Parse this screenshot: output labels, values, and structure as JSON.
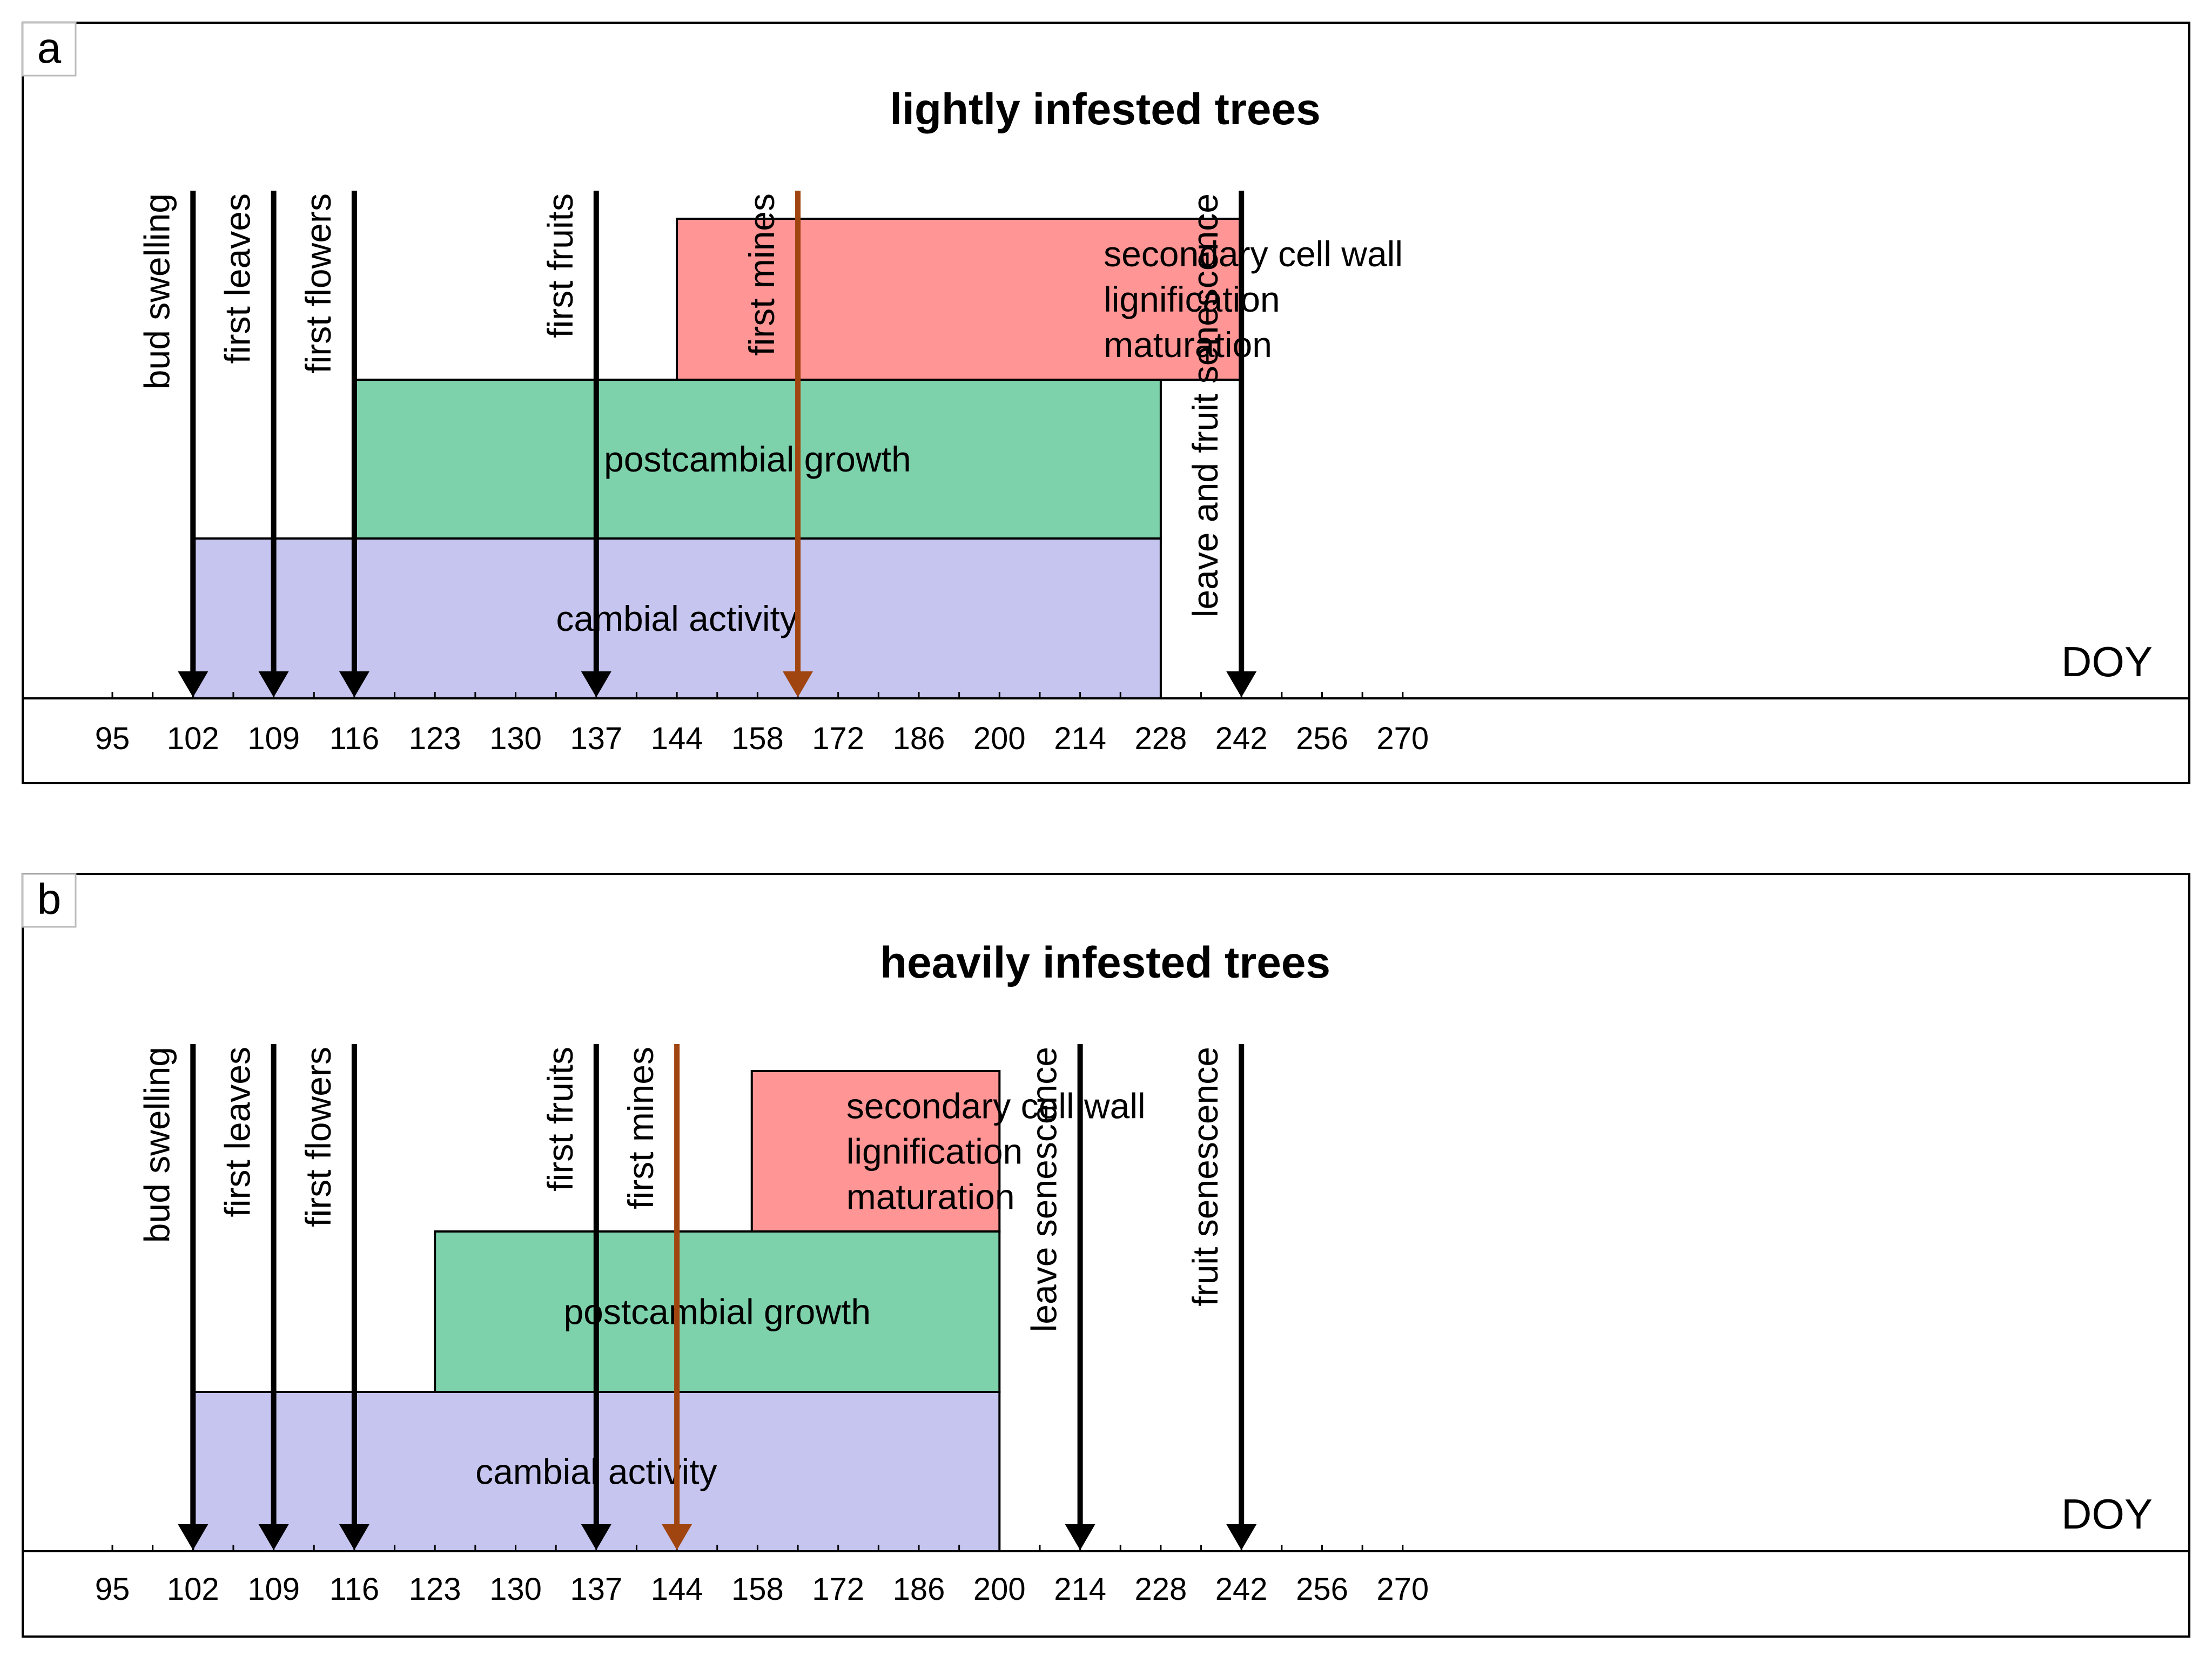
{
  "chart_data": [
    {
      "type": "bar",
      "panel_label": "a",
      "title": "lightly infested trees",
      "xlabel": "DOY",
      "x_ticks": [
        95,
        102,
        109,
        116,
        123,
        130,
        137,
        144,
        158,
        172,
        186,
        200,
        214,
        228,
        242,
        256,
        270
      ],
      "periods": [
        {
          "lines": [
            "cambial activity"
          ],
          "start": 102,
          "end": 228,
          "color": "#c5c5ef"
        },
        {
          "lines": [
            "postcambial growth"
          ],
          "start": 116,
          "end": 228,
          "color": "#7dd2ab"
        },
        {
          "lines": [
            "secondary cell wall",
            "lignification",
            "maturation"
          ],
          "start": 144,
          "end": 242,
          "color": "#ff9594"
        }
      ],
      "events": [
        {
          "label": "bud swelling",
          "doy": 102,
          "color": "#000000"
        },
        {
          "label": "first leaves",
          "doy": 109,
          "color": "#000000"
        },
        {
          "label": "first flowers",
          "doy": 116,
          "color": "#000000"
        },
        {
          "label": "first fruits",
          "doy": 137,
          "color": "#000000"
        },
        {
          "label": "first mines",
          "doy": 165,
          "color": "#a0450f"
        },
        {
          "label": "leave and fruit senescence",
          "doy": 242,
          "color": "#000000"
        }
      ]
    },
    {
      "type": "bar",
      "panel_label": "b",
      "title": "heavily infested trees",
      "xlabel": "DOY",
      "x_ticks": [
        95,
        102,
        109,
        116,
        123,
        130,
        137,
        144,
        158,
        172,
        186,
        200,
        214,
        228,
        242,
        256,
        270
      ],
      "periods": [
        {
          "lines": [
            "cambial activity"
          ],
          "start": 102,
          "end": 200,
          "color": "#c5c5ef"
        },
        {
          "lines": [
            "postcambial growth"
          ],
          "start": 123,
          "end": 200,
          "color": "#7dd2ab"
        },
        {
          "lines": [
            "secondary cell wall",
            "lignification",
            "maturation"
          ],
          "start": 157,
          "end": 200,
          "color": "#ff9594"
        }
      ],
      "events": [
        {
          "label": "bud swelling",
          "doy": 102,
          "color": "#000000"
        },
        {
          "label": "first leaves",
          "doy": 109,
          "color": "#000000"
        },
        {
          "label": "first flowers",
          "doy": 116,
          "color": "#000000"
        },
        {
          "label": "first fruits",
          "doy": 137,
          "color": "#000000"
        },
        {
          "label": "first mines",
          "doy": 144,
          "color": "#a0450f"
        },
        {
          "label": "leave senescence",
          "doy": 214,
          "color": "#000000"
        },
        {
          "label": "fruit senescence",
          "doy": 242,
          "color": "#000000"
        }
      ]
    }
  ]
}
